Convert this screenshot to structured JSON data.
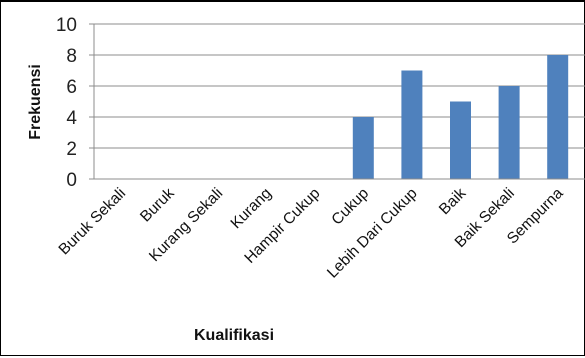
{
  "chart_data": {
    "type": "bar",
    "title": "",
    "xlabel": "Kualifikasi",
    "ylabel": "Frekuensi",
    "ylim": [
      0,
      10
    ],
    "yticks": [
      0,
      2,
      4,
      6,
      8,
      10
    ],
    "categories": [
      "Buruk Sekali",
      "Buruk",
      "Kurang Sekali",
      "Kurang",
      "Hampir Cukup",
      "Cukup",
      "Lebih Dari Cukup",
      "Baik",
      "Baik Sekali",
      "Sempurna"
    ],
    "values": [
      0,
      0,
      0,
      0,
      0,
      4,
      7,
      5,
      6,
      8
    ],
    "bar_color": "#4F81BD",
    "grid": true,
    "legend": "none"
  }
}
